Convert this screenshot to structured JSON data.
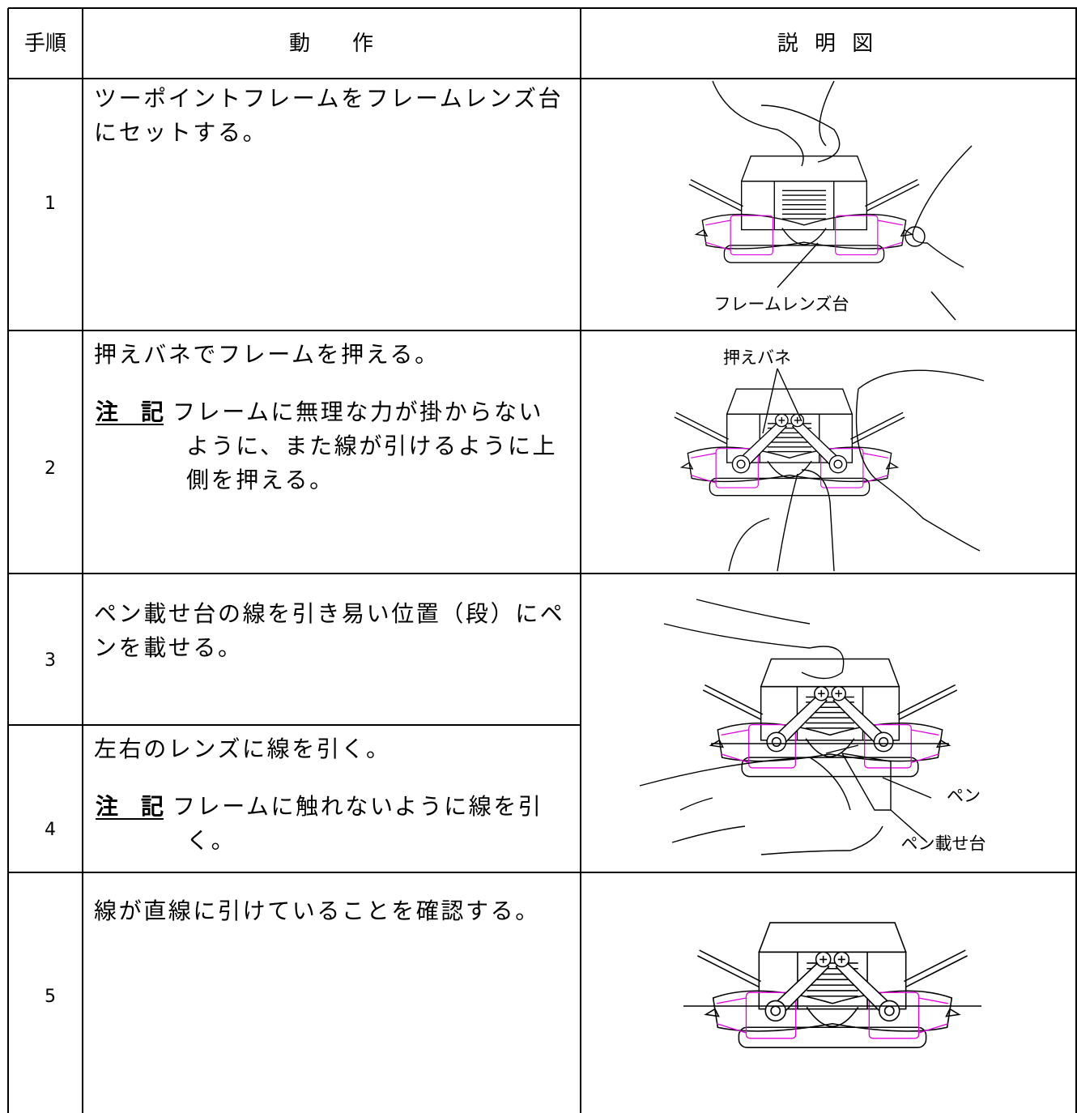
{
  "table": {
    "header": [
      "手順",
      "動　　作",
      "説 明 図"
    ],
    "rows": [
      {
        "step": "1",
        "action": [
          "ツーポイントフレームをフレームレンズ台",
          "にセットする。"
        ],
        "figure_labels": [
          "フレームレンズ台"
        ]
      },
      {
        "step": "2",
        "action": [
          "押えバネでフレームを押える。"
        ],
        "note": {
          "label": "注　記",
          "lines": [
            "フレームに無理な力が掛からない",
            "ように、また線が引けるように上",
            "側を押える。"
          ]
        },
        "figure_labels": [
          "押えバネ"
        ]
      },
      {
        "step": "3",
        "action": [
          "ペン載せ台の線を引き易い位置（段）にペ",
          "ンを載せる。"
        ],
        "figure_labels": [
          "ペン",
          "ペン載せ台"
        ]
      },
      {
        "step": "4",
        "action": [
          "左右のレンズに線を引く。"
        ],
        "note": {
          "label": "注　記",
          "lines": [
            "フレームに触れないように線を引",
            "く。"
          ]
        }
      },
      {
        "step": "5",
        "action": [
          "線が直線に引けていることを確認する。"
        ]
      }
    ]
  }
}
